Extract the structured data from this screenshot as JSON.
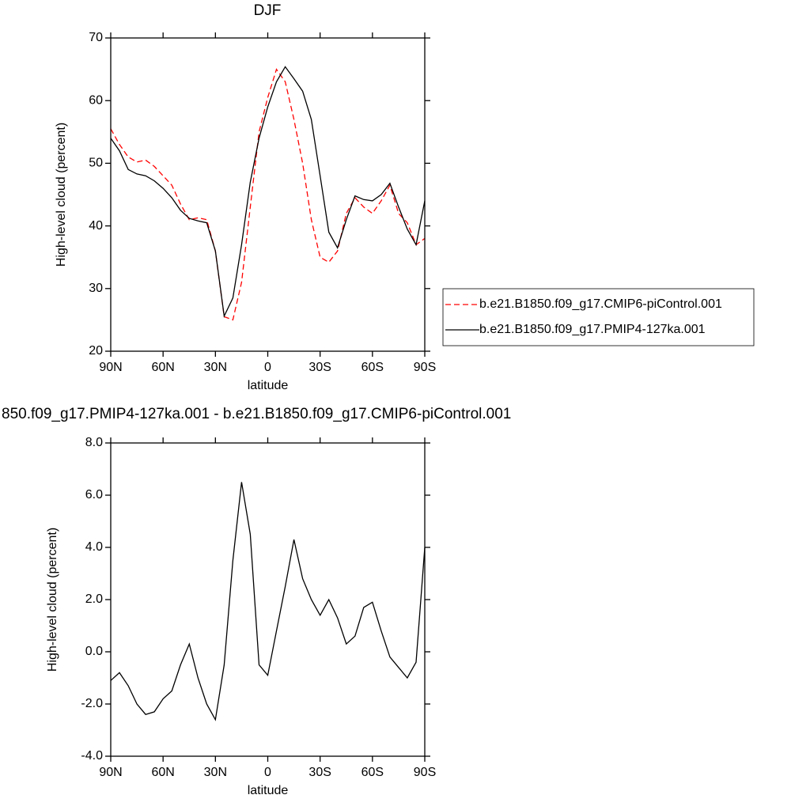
{
  "chart_data": [
    {
      "type": "line",
      "title": "DJF",
      "xlabel": "latitude",
      "ylabel": "High-level cloud (percent)",
      "x": [
        90,
        85,
        80,
        75,
        70,
        65,
        60,
        55,
        50,
        45,
        40,
        35,
        30,
        25,
        20,
        15,
        10,
        5,
        0,
        -5,
        -10,
        -15,
        -20,
        -25,
        -30,
        -35,
        -40,
        -45,
        -50,
        -55,
        -60,
        -65,
        -70,
        -75,
        -80,
        -85,
        -90
      ],
      "xlim": [
        90,
        -90
      ],
      "xticks": [
        {
          "value": 90,
          "label": "90N"
        },
        {
          "value": 60,
          "label": "60N"
        },
        {
          "value": 30,
          "label": "30N"
        },
        0,
        {
          "value": -30,
          "label": "30S"
        },
        {
          "value": -60,
          "label": "60S"
        },
        {
          "value": -90,
          "label": "90S"
        }
      ],
      "ylim": [
        20,
        70
      ],
      "yticks": [
        20,
        30,
        40,
        50,
        60,
        70
      ],
      "legend": "right",
      "series": [
        {
          "name": "b.e21.B1850.f09_g17.CMIP6-piControl.001",
          "color": "#ff0000",
          "dashed": true,
          "values": [
            55.5,
            53,
            51,
            50.2,
            50.5,
            49.5,
            48,
            46.5,
            43.5,
            41,
            41.3,
            41,
            36,
            25.5,
            25,
            31,
            43,
            55,
            60.5,
            65,
            63,
            57,
            50,
            41,
            35,
            34.2,
            36,
            42,
            44.5,
            43,
            42,
            44,
            46.5,
            42,
            40.5,
            37,
            38
          ]
        },
        {
          "name": "b.e21.B1850.f09_g17.PMIP4-127ka.001",
          "color": "#000000",
          "dashed": false,
          "values": [
            54,
            52,
            49,
            48.3,
            48,
            47.2,
            46,
            44.5,
            42.5,
            41.2,
            40.8,
            40.5,
            36,
            25.6,
            28.5,
            37,
            47,
            54,
            59,
            63,
            65.4,
            63.5,
            61.5,
            57,
            48,
            39,
            36.5,
            41,
            44.8,
            44.2,
            44,
            45,
            46.8,
            43,
            39.5,
            37,
            44
          ]
        }
      ]
    },
    {
      "type": "line",
      "title": "850.f09_g17.PMIP4-127ka.001 - b.e21.B1850.f09_g17.CMIP6-piControl.001",
      "xlabel": "latitude",
      "ylabel": "High-level cloud (percent)",
      "x": [
        90,
        85,
        80,
        75,
        70,
        65,
        60,
        55,
        50,
        45,
        40,
        35,
        30,
        25,
        20,
        15,
        10,
        5,
        0,
        -5,
        -10,
        -15,
        -20,
        -25,
        -30,
        -35,
        -40,
        -45,
        -50,
        -55,
        -60,
        -65,
        -70,
        -75,
        -80,
        -85,
        -90
      ],
      "xlim": [
        90,
        -90
      ],
      "xticks": [
        {
          "value": 90,
          "label": "90N"
        },
        {
          "value": 60,
          "label": "60N"
        },
        {
          "value": 30,
          "label": "30N"
        },
        0,
        {
          "value": -30,
          "label": "30S"
        },
        {
          "value": -60,
          "label": "60S"
        },
        {
          "value": -90,
          "label": "90S"
        }
      ],
      "ylim": [
        -4,
        8
      ],
      "yticks": [
        {
          "value": -4,
          "label": "-4.0"
        },
        {
          "value": -2,
          "label": "-2.0"
        },
        {
          "value": 0,
          "label": "0.0"
        },
        {
          "value": 2,
          "label": "2.0"
        },
        {
          "value": 4,
          "label": "4.0"
        },
        {
          "value": 6,
          "label": "6.0"
        },
        {
          "value": 8,
          "label": "8.0"
        }
      ],
      "series": [
        {
          "color": "#000000",
          "dashed": false,
          "values": [
            -1.1,
            -0.8,
            -1.3,
            -2.0,
            -2.4,
            -2.3,
            -1.8,
            -1.5,
            -0.5,
            0.3,
            -1.0,
            -2.0,
            -2.6,
            -0.5,
            3.5,
            6.5,
            4.5,
            -0.5,
            -0.9,
            0.8,
            2.5,
            4.3,
            2.8,
            2.0,
            1.4,
            2.0,
            1.3,
            0.3,
            0.6,
            1.7,
            1.9,
            0.8,
            -0.2,
            -0.6,
            -1.0,
            -0.4,
            4.0
          ]
        }
      ]
    }
  ]
}
